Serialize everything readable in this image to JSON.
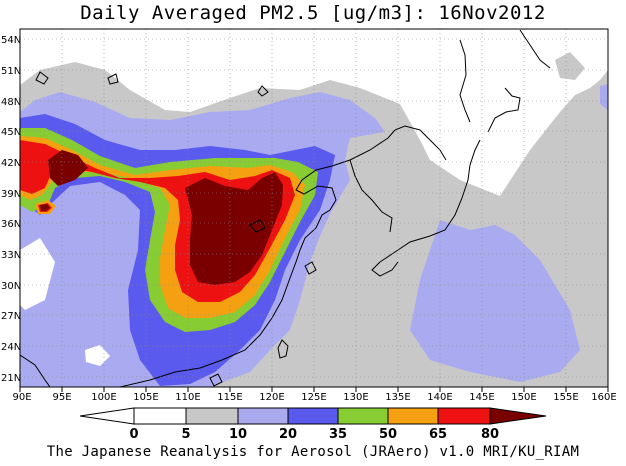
{
  "title": "Daily Averaged PM2.5 [ug/m3]: 16Nov2012",
  "credit": "The Japanese Reanalysis for Aerosol (JRAero) v1.0 MRI/KU_RIAM",
  "map": {
    "lon_range": [
      90,
      160
    ],
    "lat_range": [
      20,
      55
    ],
    "lon_ticks": [
      "90E",
      "95E",
      "100E",
      "105E",
      "110E",
      "115E",
      "120E",
      "125E",
      "130E",
      "135E",
      "140E",
      "145E",
      "150E",
      "155E",
      "160E"
    ],
    "lat_ticks": [
      "54N",
      "51N",
      "48N",
      "45N",
      "42N",
      "39N",
      "36N",
      "33N",
      "30N",
      "27N",
      "24N",
      "21N"
    ],
    "gridlines": "dotted"
  },
  "colorbar": {
    "labels": [
      "0",
      "5",
      "10",
      "20",
      "35",
      "50",
      "65",
      "80"
    ],
    "colors": [
      "#ffffff",
      "#c8c8c8",
      "#aaaaf0",
      "#5a5aee",
      "#88cc33",
      "#f5a011",
      "#ee1111",
      "#7a0000"
    ]
  }
}
